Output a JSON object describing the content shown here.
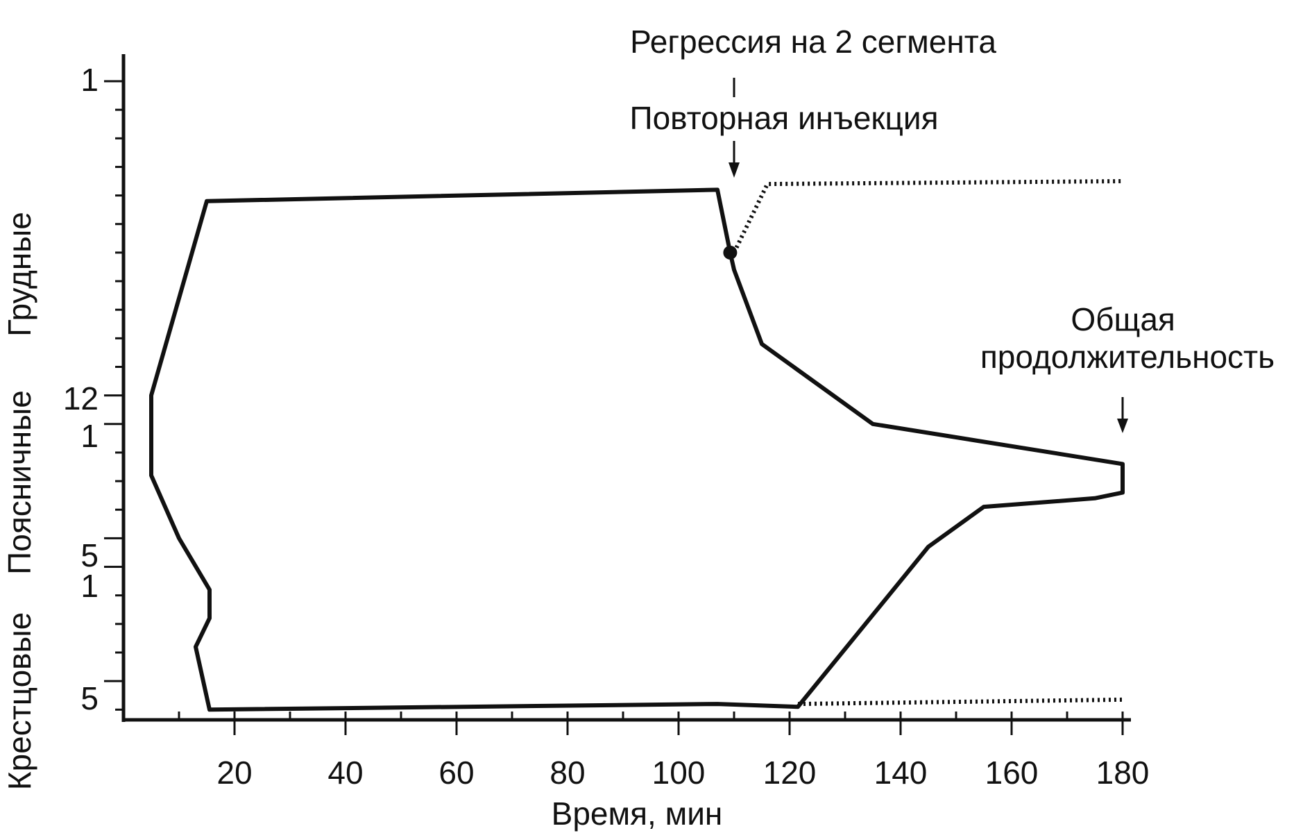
{
  "chart_data": {
    "type": "line",
    "xlabel": "Время, мин",
    "x_ticks": [
      20,
      40,
      60,
      80,
      100,
      120,
      140,
      160,
      180
    ],
    "xlim": [
      0,
      180
    ],
    "y_ticks": [
      {
        "label": "1",
        "segment": "T1"
      },
      {
        "label": "12",
        "segment": "T12"
      },
      {
        "label": "1",
        "segment": "L1"
      },
      {
        "label": "5",
        "segment": "L5"
      },
      {
        "label": "1",
        "segment": "S1"
      },
      {
        "label": "5",
        "segment": "S5"
      }
    ],
    "y_groups": [
      "Грудные",
      "Поясничные",
      "Крестцовые"
    ],
    "series": [
      {
        "style": "solid",
        "points": [
          [
            5,
            11
          ],
          [
            15,
            4.2
          ],
          [
            107,
            3.8
          ],
          [
            109.3,
            6
          ],
          [
            110,
            6.6
          ],
          [
            115,
            9.2
          ],
          [
            135,
            12
          ],
          [
            180,
            13.4
          ],
          [
            180,
            14.4
          ],
          [
            175,
            14.6
          ],
          [
            155,
            14.9
          ],
          [
            145,
            16.3
          ],
          [
            121.5,
            21.9
          ],
          [
            107,
            21.8
          ],
          [
            15.5,
            22
          ],
          [
            13,
            19.8
          ],
          [
            15.5,
            18.8
          ],
          [
            15.5,
            17.8
          ],
          [
            10,
            16
          ],
          [
            5,
            13.8
          ]
        ]
      },
      {
        "style": "dotted",
        "points": [
          [
            110,
            6
          ],
          [
            116,
            3.6
          ],
          [
            180,
            3.5
          ]
        ]
      },
      {
        "style": "dotted",
        "points": [
          [
            121.5,
            21.8
          ],
          [
            180,
            21.65
          ]
        ]
      }
    ],
    "markers": [
      {
        "x": 109.3,
        "y": 6,
        "shape": "filled-circle"
      }
    ],
    "annotations": [
      {
        "text": "Регрессия на 2 сегмента"
      },
      {
        "text": "Повторная инъекция"
      },
      {
        "text": "Общая продолжительность"
      }
    ]
  }
}
